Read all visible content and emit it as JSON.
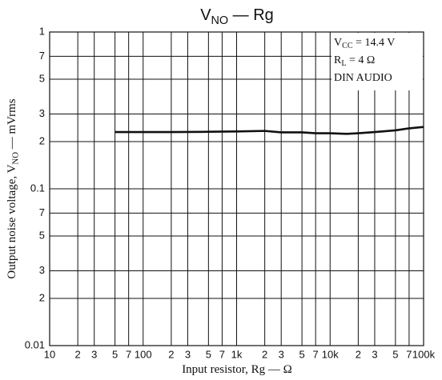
{
  "chart_data": {
    "type": "line",
    "title": [
      {
        "text": "V"
      },
      {
        "text": "NO",
        "sub": true
      },
      {
        "text": " — Rg"
      }
    ],
    "ylabel": [
      {
        "text": "Output noise voltage, V"
      },
      {
        "text": "NO",
        "sub": true
      },
      {
        "text": " — mVrms"
      }
    ],
    "xlabel": [
      {
        "text": "Input resistor, Rg — Ω"
      }
    ],
    "annotations": [
      [
        {
          "text": "V"
        },
        {
          "text": "CC",
          "sub": true
        },
        {
          "text": " = 14.4 V"
        }
      ],
      [
        {
          "text": "R"
        },
        {
          "text": "L",
          "sub": true
        },
        {
          "text": " = 4 Ω"
        }
      ],
      [
        {
          "text": "DIN AUDIO"
        }
      ]
    ],
    "x_log": true,
    "y_log": true,
    "grid": true,
    "xlim": [
      10,
      100000
    ],
    "ylim": [
      0.01,
      1
    ],
    "xticks": [
      10,
      {
        "value": 20,
        "label": "2"
      },
      {
        "value": 30,
        "label": "3"
      },
      {
        "value": 50,
        "label": "5"
      },
      {
        "value": 70,
        "label": "7"
      },
      100,
      {
        "value": 200,
        "label": "2"
      },
      {
        "value": 300,
        "label": "3"
      },
      {
        "value": 500,
        "label": "5"
      },
      {
        "value": 700,
        "label": "7"
      },
      {
        "value": 1000,
        "label": "1k"
      },
      {
        "value": 2000,
        "label": "2"
      },
      {
        "value": 3000,
        "label": "3"
      },
      {
        "value": 5000,
        "label": "5"
      },
      {
        "value": 7000,
        "label": "7"
      },
      {
        "value": 10000,
        "label": "10k"
      },
      {
        "value": 20000,
        "label": "2"
      },
      {
        "value": 30000,
        "label": "3"
      },
      {
        "value": 50000,
        "label": "5"
      },
      {
        "value": 70000,
        "label": "7"
      },
      {
        "value": 100000,
        "label": "100k"
      }
    ],
    "yticks": [
      1,
      {
        "value": 0.7,
        "label": "7"
      },
      {
        "value": 0.5,
        "label": "5"
      },
      {
        "value": 0.3,
        "label": "3"
      },
      {
        "value": 0.2,
        "label": "2"
      },
      0.1,
      {
        "value": 0.07,
        "label": "7"
      },
      {
        "value": 0.05,
        "label": "5"
      },
      {
        "value": 0.03,
        "label": "3"
      },
      {
        "value": 0.02,
        "label": "2"
      },
      0.01
    ],
    "x": [
      50,
      100,
      200,
      500,
      1000,
      2000,
      3000,
      5000,
      7000,
      10000,
      15000,
      20000,
      30000,
      50000,
      70000,
      100000
    ],
    "series": [
      {
        "color": "#111111",
        "values": [
          0.23,
          0.23,
          0.23,
          0.231,
          0.232,
          0.234,
          0.229,
          0.229,
          0.226,
          0.226,
          0.224,
          0.226,
          0.23,
          0.236,
          0.243,
          0.248
        ]
      }
    ]
  }
}
